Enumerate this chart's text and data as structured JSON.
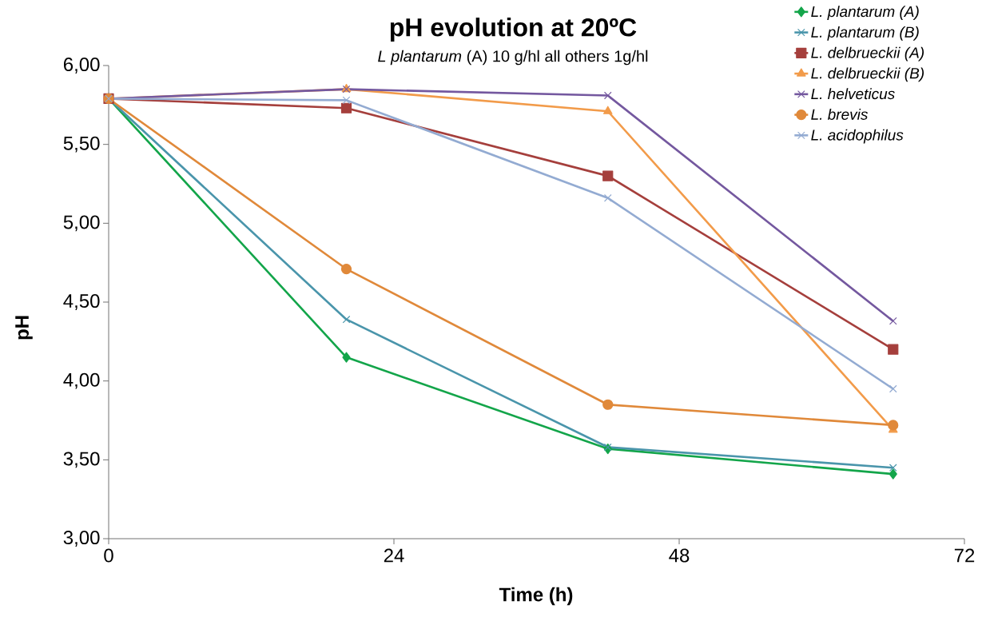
{
  "chart_data": {
    "type": "line",
    "title": "pH evolution at 20ºC",
    "subtitle": "*L plantarum* (A) 10 g/hl all others 1g/hl",
    "xlabel": "Time (h)",
    "ylabel": "pH",
    "x": [
      0,
      20,
      42,
      66
    ],
    "series": [
      {
        "name": "L. plantarum (A)",
        "color": "#13a54a",
        "marker": "diamond",
        "values": [
          5.79,
          4.15,
          3.57,
          3.41
        ]
      },
      {
        "name": "L. plantarum (B)",
        "color": "#4a95ab",
        "marker": "cross",
        "values": [
          5.79,
          4.39,
          3.58,
          3.45
        ]
      },
      {
        "name": "L. delbrueckii (A)",
        "color": "#a53f3c",
        "marker": "square",
        "values": [
          5.79,
          5.73,
          5.3,
          4.2
        ]
      },
      {
        "name": "L. delbrueckii (B)",
        "color": "#f29b4a",
        "marker": "triangle",
        "values": [
          5.79,
          5.85,
          5.71,
          3.69
        ]
      },
      {
        "name": "L. helveticus",
        "color": "#74589f",
        "marker": "cross",
        "values": [
          5.79,
          5.85,
          5.81,
          4.38
        ]
      },
      {
        "name": "L. brevis",
        "color": "#e0893a",
        "marker": "circle",
        "values": [
          5.79,
          4.71,
          3.85,
          3.72
        ]
      },
      {
        "name": "L. acidophilus",
        "color": "#93abd2",
        "marker": "cross",
        "values": [
          5.79,
          5.78,
          5.16,
          3.95
        ]
      }
    ],
    "xlim": [
      0,
      72
    ],
    "xticks": [
      0,
      24,
      48,
      72
    ],
    "ylim": [
      3,
      6
    ],
    "yticks": [
      {
        "value": 3,
        "label": "3,00"
      },
      {
        "value": 3.5,
        "label": "3,50"
      },
      {
        "value": 4,
        "label": "4,00"
      },
      {
        "value": 4.5,
        "label": "4,50"
      },
      {
        "value": 5,
        "label": "5,00"
      },
      {
        "value": 5.5,
        "label": "5,50"
      },
      {
        "value": 6,
        "label": "6,00"
      }
    ],
    "legend": "top right",
    "line_style": "solid"
  }
}
